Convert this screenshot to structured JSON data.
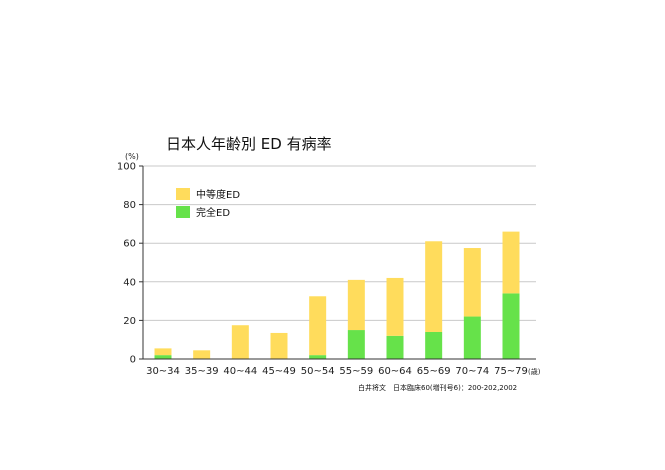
{
  "chart_data": {
    "type": "bar",
    "title": "日本人年齢別 ED 有病率",
    "ylabel": "(%)",
    "xlabel": "",
    "x_unit_label": "(歳)",
    "categories": [
      "30~34",
      "35~39",
      "40~44",
      "45~49",
      "50~54",
      "55~59",
      "60~64",
      "65~69",
      "70~74",
      "75~79"
    ],
    "ylim": [
      0,
      100
    ],
    "y_ticks": [
      0,
      20,
      40,
      60,
      80,
      100
    ],
    "stacked": true,
    "grid": true,
    "legend_position": "top-left",
    "series": [
      {
        "name": "完全ED",
        "color": "#66e24a",
        "values": [
          2,
          0,
          0,
          0,
          2,
          15,
          12,
          14,
          22,
          34
        ]
      },
      {
        "name": "中等度ED",
        "color": "#ffdc5c",
        "values": [
          3.5,
          4.5,
          17.5,
          13.5,
          30.5,
          26,
          30,
          47,
          35.5,
          32
        ]
      }
    ],
    "source_note": "白井将文　日本臨床60(増刊号6)：200-202,2002"
  }
}
